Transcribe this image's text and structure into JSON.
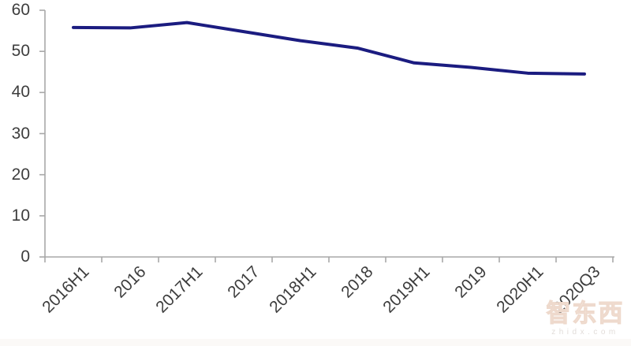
{
  "chart_data": {
    "type": "line",
    "title": "",
    "xlabel": "",
    "ylabel": "",
    "categories": [
      "2016H1",
      "2016",
      "2017H1",
      "2017",
      "2018H1",
      "2018",
      "2019H1",
      "2019",
      "2020H1",
      "2020Q3"
    ],
    "values": [
      55.8,
      55.7,
      57.0,
      54.8,
      52.6,
      50.8,
      47.2,
      46.1,
      44.7,
      44.5
    ],
    "ylim": [
      0,
      60
    ],
    "yticks": [
      0,
      10,
      20,
      30,
      40,
      50,
      60
    ],
    "grid": "off",
    "legend": "none",
    "x_tick_label_rotation_deg": 45
  },
  "colors": {
    "line": "#1b1c80",
    "axis": "#a8a8a8",
    "tick_label": "#3d3d3d",
    "background": "#ffffff",
    "watermark": "#f6e8de"
  },
  "watermark": {
    "logo": "智东西",
    "domain": "zhidx.com"
  }
}
